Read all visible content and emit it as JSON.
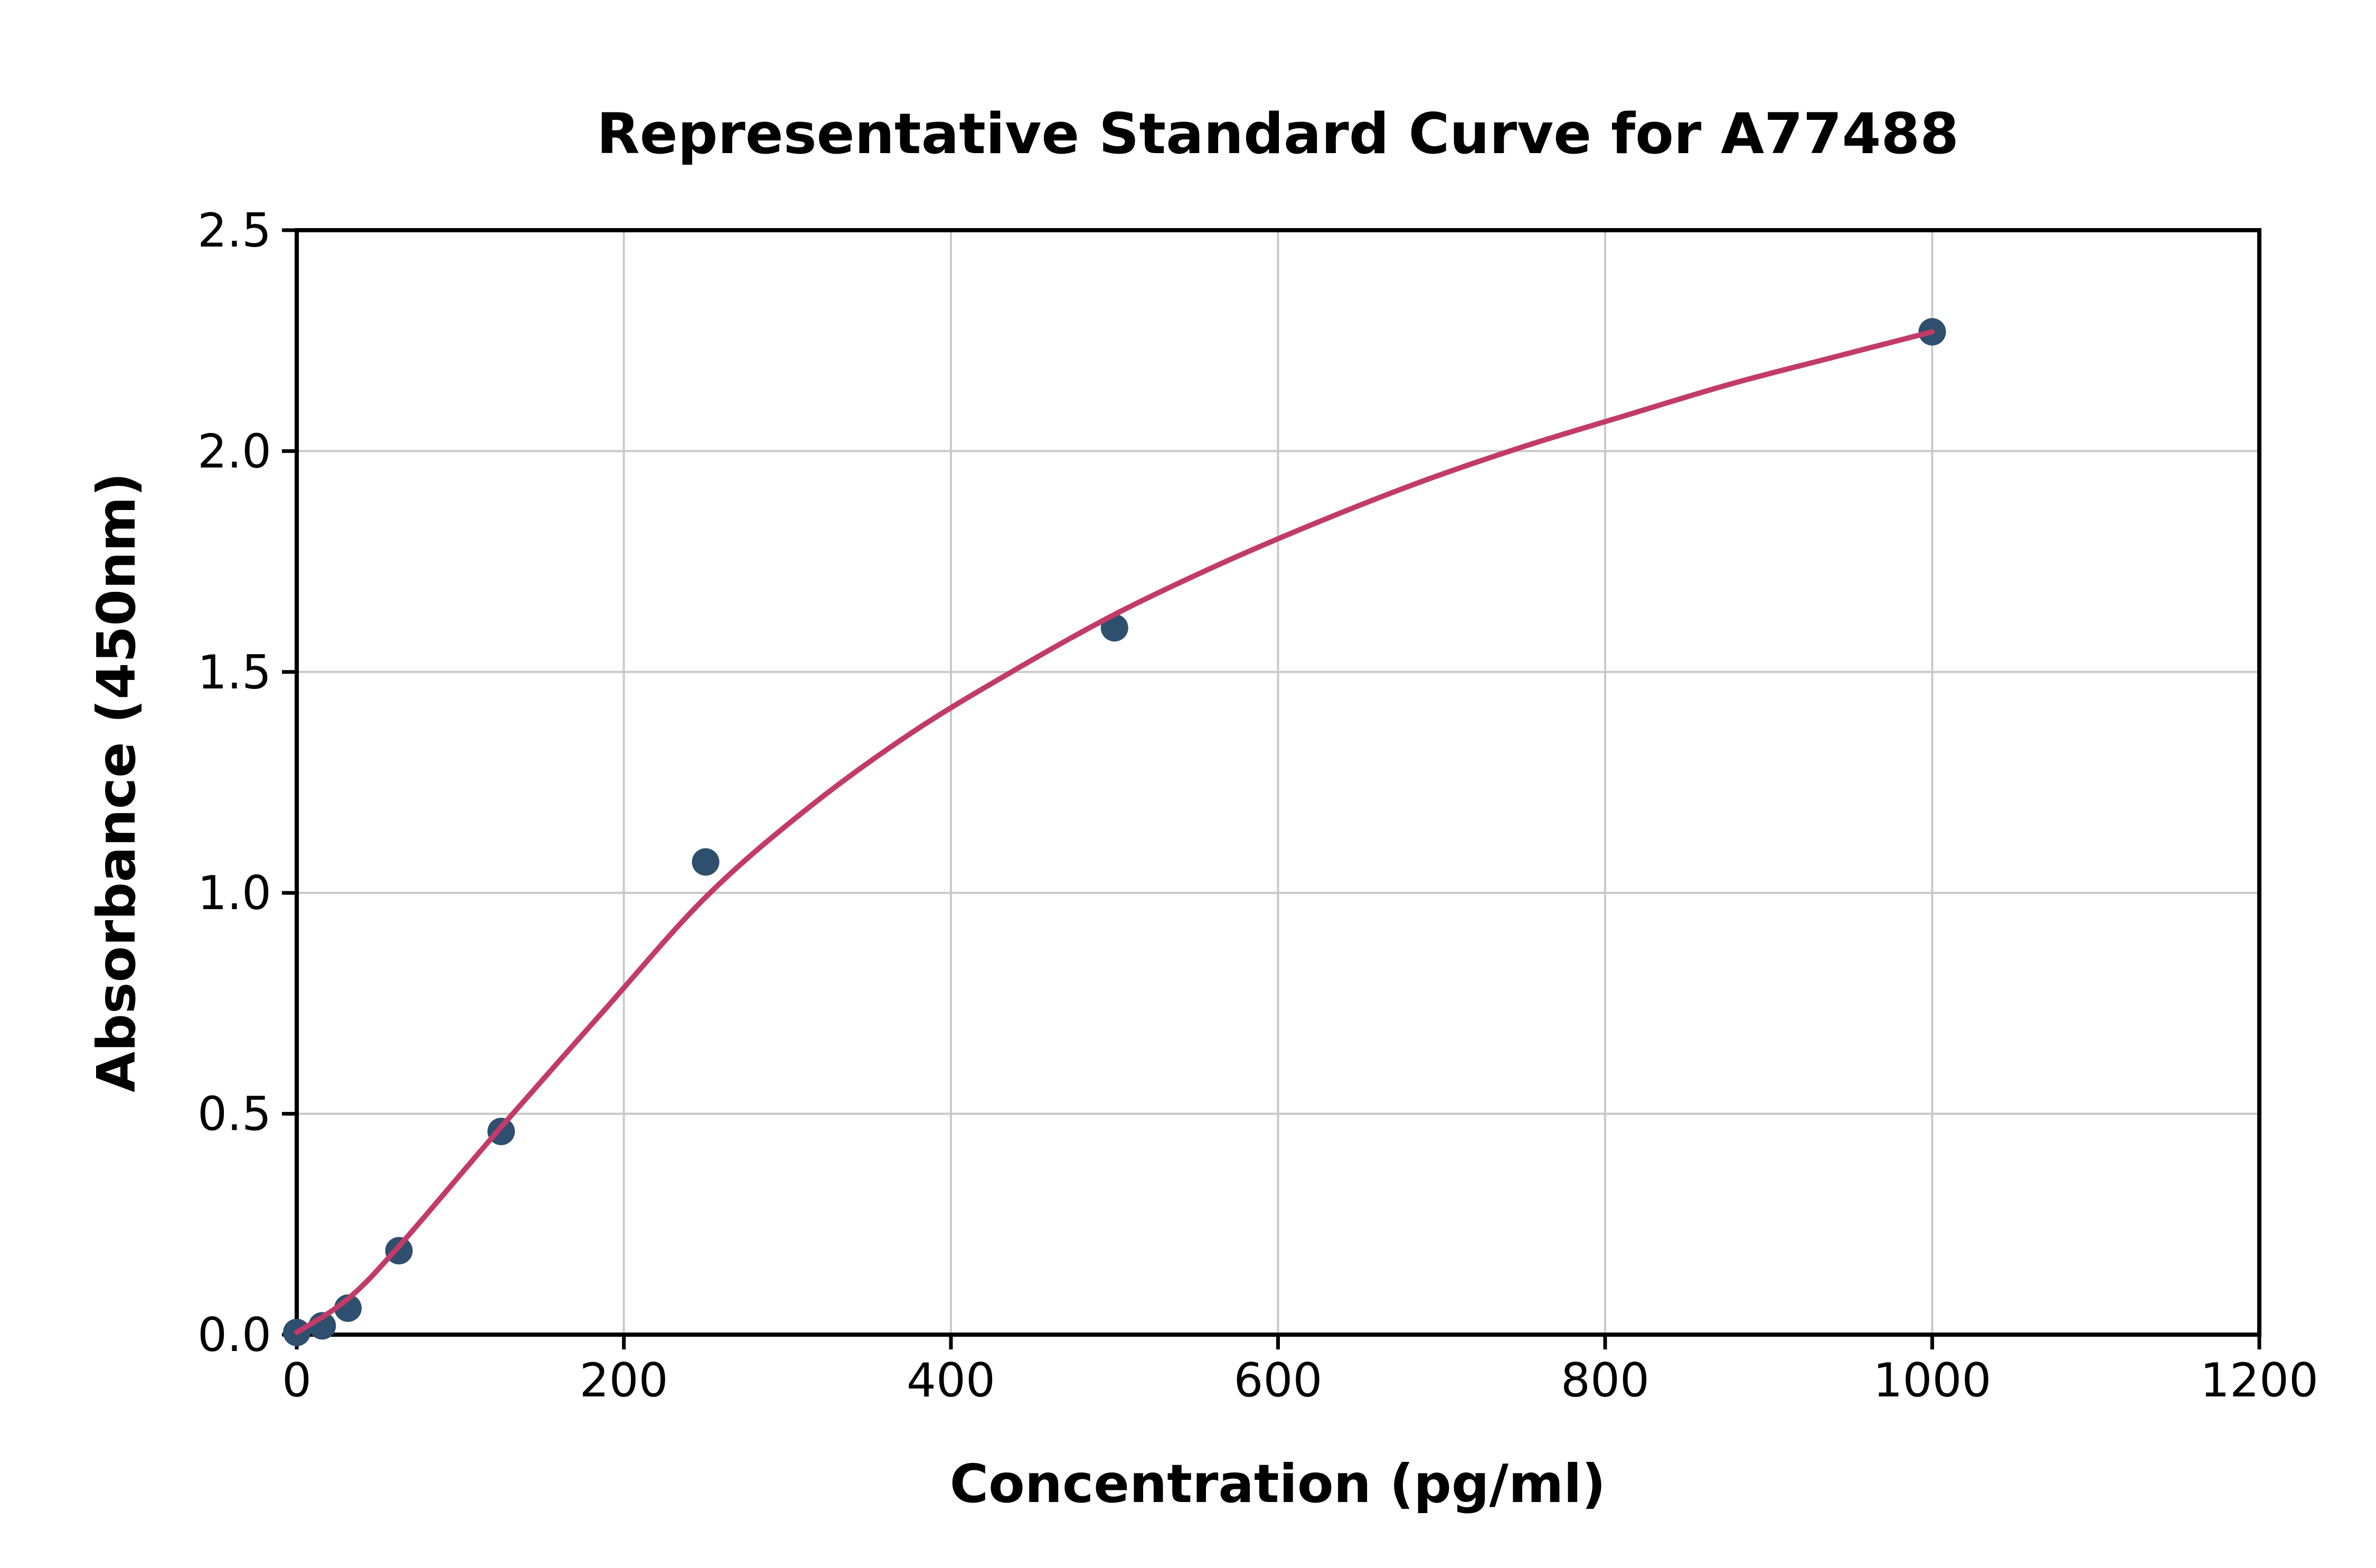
{
  "chart_data": {
    "type": "scatter",
    "title": "Representative Standard Curve for A77488",
    "xlabel": "Concentration (pg/ml)",
    "ylabel": "Absorbance (450nm)",
    "xlim": [
      0,
      1200
    ],
    "ylim": [
      0,
      2.5
    ],
    "xtick_values": [
      0,
      200,
      400,
      600,
      800,
      1000,
      1200
    ],
    "xtick_labels": [
      "0",
      "200",
      "400",
      "600",
      "800",
      "1000",
      "1200"
    ],
    "ytick_values": [
      0,
      0.5,
      1.0,
      1.5,
      2.0,
      2.5
    ],
    "ytick_labels": [
      "0.0",
      "0.5",
      "1.0",
      "1.5",
      "2.0",
      "2.5"
    ],
    "grid": true,
    "legend": "none",
    "series": [
      {
        "name": "standard-points",
        "type": "scatter",
        "points": [
          [
            0,
            0.005
          ],
          [
            15.6,
            0.02
          ],
          [
            31.3,
            0.06
          ],
          [
            62.5,
            0.19
          ],
          [
            125,
            0.46
          ],
          [
            250,
            1.07
          ],
          [
            500,
            1.6
          ],
          [
            1000,
            2.27
          ]
        ]
      },
      {
        "name": "4pl-fit-curve",
        "type": "line",
        "points": [
          [
            0,
            0.005
          ],
          [
            31,
            0.08
          ],
          [
            62.5,
            0.2
          ],
          [
            125,
            0.47
          ],
          [
            187,
            0.73
          ],
          [
            250,
            0.99
          ],
          [
            312,
            1.19
          ],
          [
            375,
            1.36
          ],
          [
            437,
            1.5
          ],
          [
            500,
            1.63
          ],
          [
            562,
            1.74
          ],
          [
            625,
            1.84
          ],
          [
            687,
            1.93
          ],
          [
            750,
            2.01
          ],
          [
            812,
            2.08
          ],
          [
            875,
            2.15
          ],
          [
            937,
            2.21
          ],
          [
            1000,
            2.27
          ]
        ]
      }
    ],
    "colors": {
      "point": "#2e4f6e",
      "curve": "#c23b68",
      "grid": "#c9c9c9",
      "axis": "#000000",
      "background": "#ffffff"
    }
  }
}
